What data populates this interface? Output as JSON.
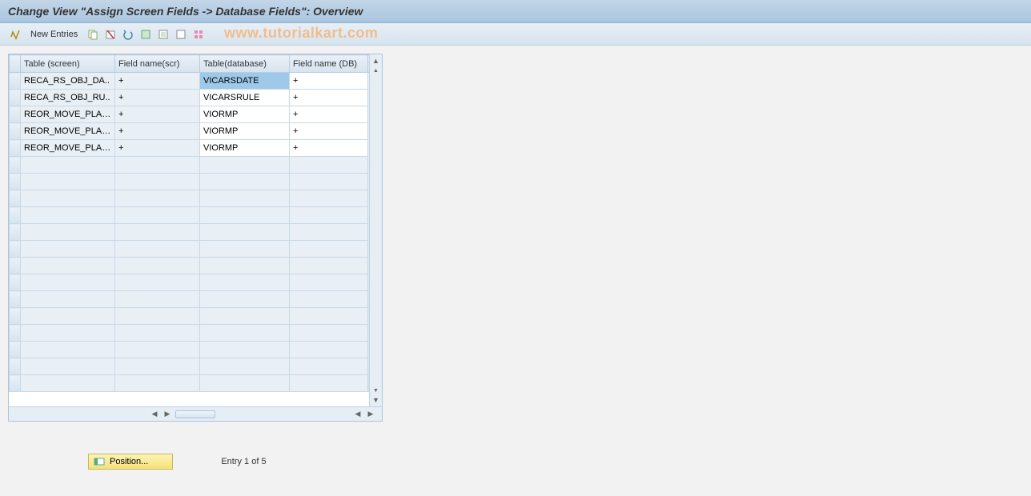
{
  "title": "Change View \"Assign Screen Fields -> Database Fields\": Overview",
  "toolbar": {
    "new_entries": "New Entries"
  },
  "watermark": "www.tutorialkart.com",
  "columns": {
    "c0": "Table (screen)",
    "c1": "Field name(scr)",
    "c2": "Table(database)",
    "c3": "Field name (DB)"
  },
  "column_widths": {
    "selector": 14,
    "c0": 118,
    "c1": 106,
    "c2": 112,
    "c3": 98,
    "btn": 16
  },
  "rows": [
    {
      "c0": "RECA_RS_OBJ_DA..",
      "c1": "+",
      "c2": "VICARSDATE",
      "c3": "+",
      "selected": true
    },
    {
      "c0": "RECA_RS_OBJ_RU..",
      "c1": "+",
      "c2": "VICARSRULE",
      "c3": "+"
    },
    {
      "c0": "REOR_MOVE_PLAN..",
      "c1": "+",
      "c2": "VIORMP",
      "c3": "+"
    },
    {
      "c0": "REOR_MOVE_PLAN..",
      "c1": "+",
      "c2": "VIORMP",
      "c3": "+"
    },
    {
      "c0": "REOR_MOVE_PLAN..",
      "c1": "+",
      "c2": "VIORMP",
      "c3": "+"
    }
  ],
  "empty_rows": 14,
  "footer": {
    "position": "Position...",
    "entry": "Entry 1 of 5"
  },
  "colors": {
    "header_bg_top": "#c3d6e8",
    "header_bg_bot": "#a9c5de",
    "toolbar_bg_top": "#e8eff6",
    "toolbar_bg_bot": "#d6e3ee",
    "readonly_bg": "#e8f0f6",
    "editable_bg": "#ffffff",
    "selected_bg": "#9ec9e8",
    "border": "#b8cde0",
    "watermark": "#f5b57a",
    "position_btn_top": "#fdf3b5",
    "position_btn_bot": "#f5e27a"
  }
}
